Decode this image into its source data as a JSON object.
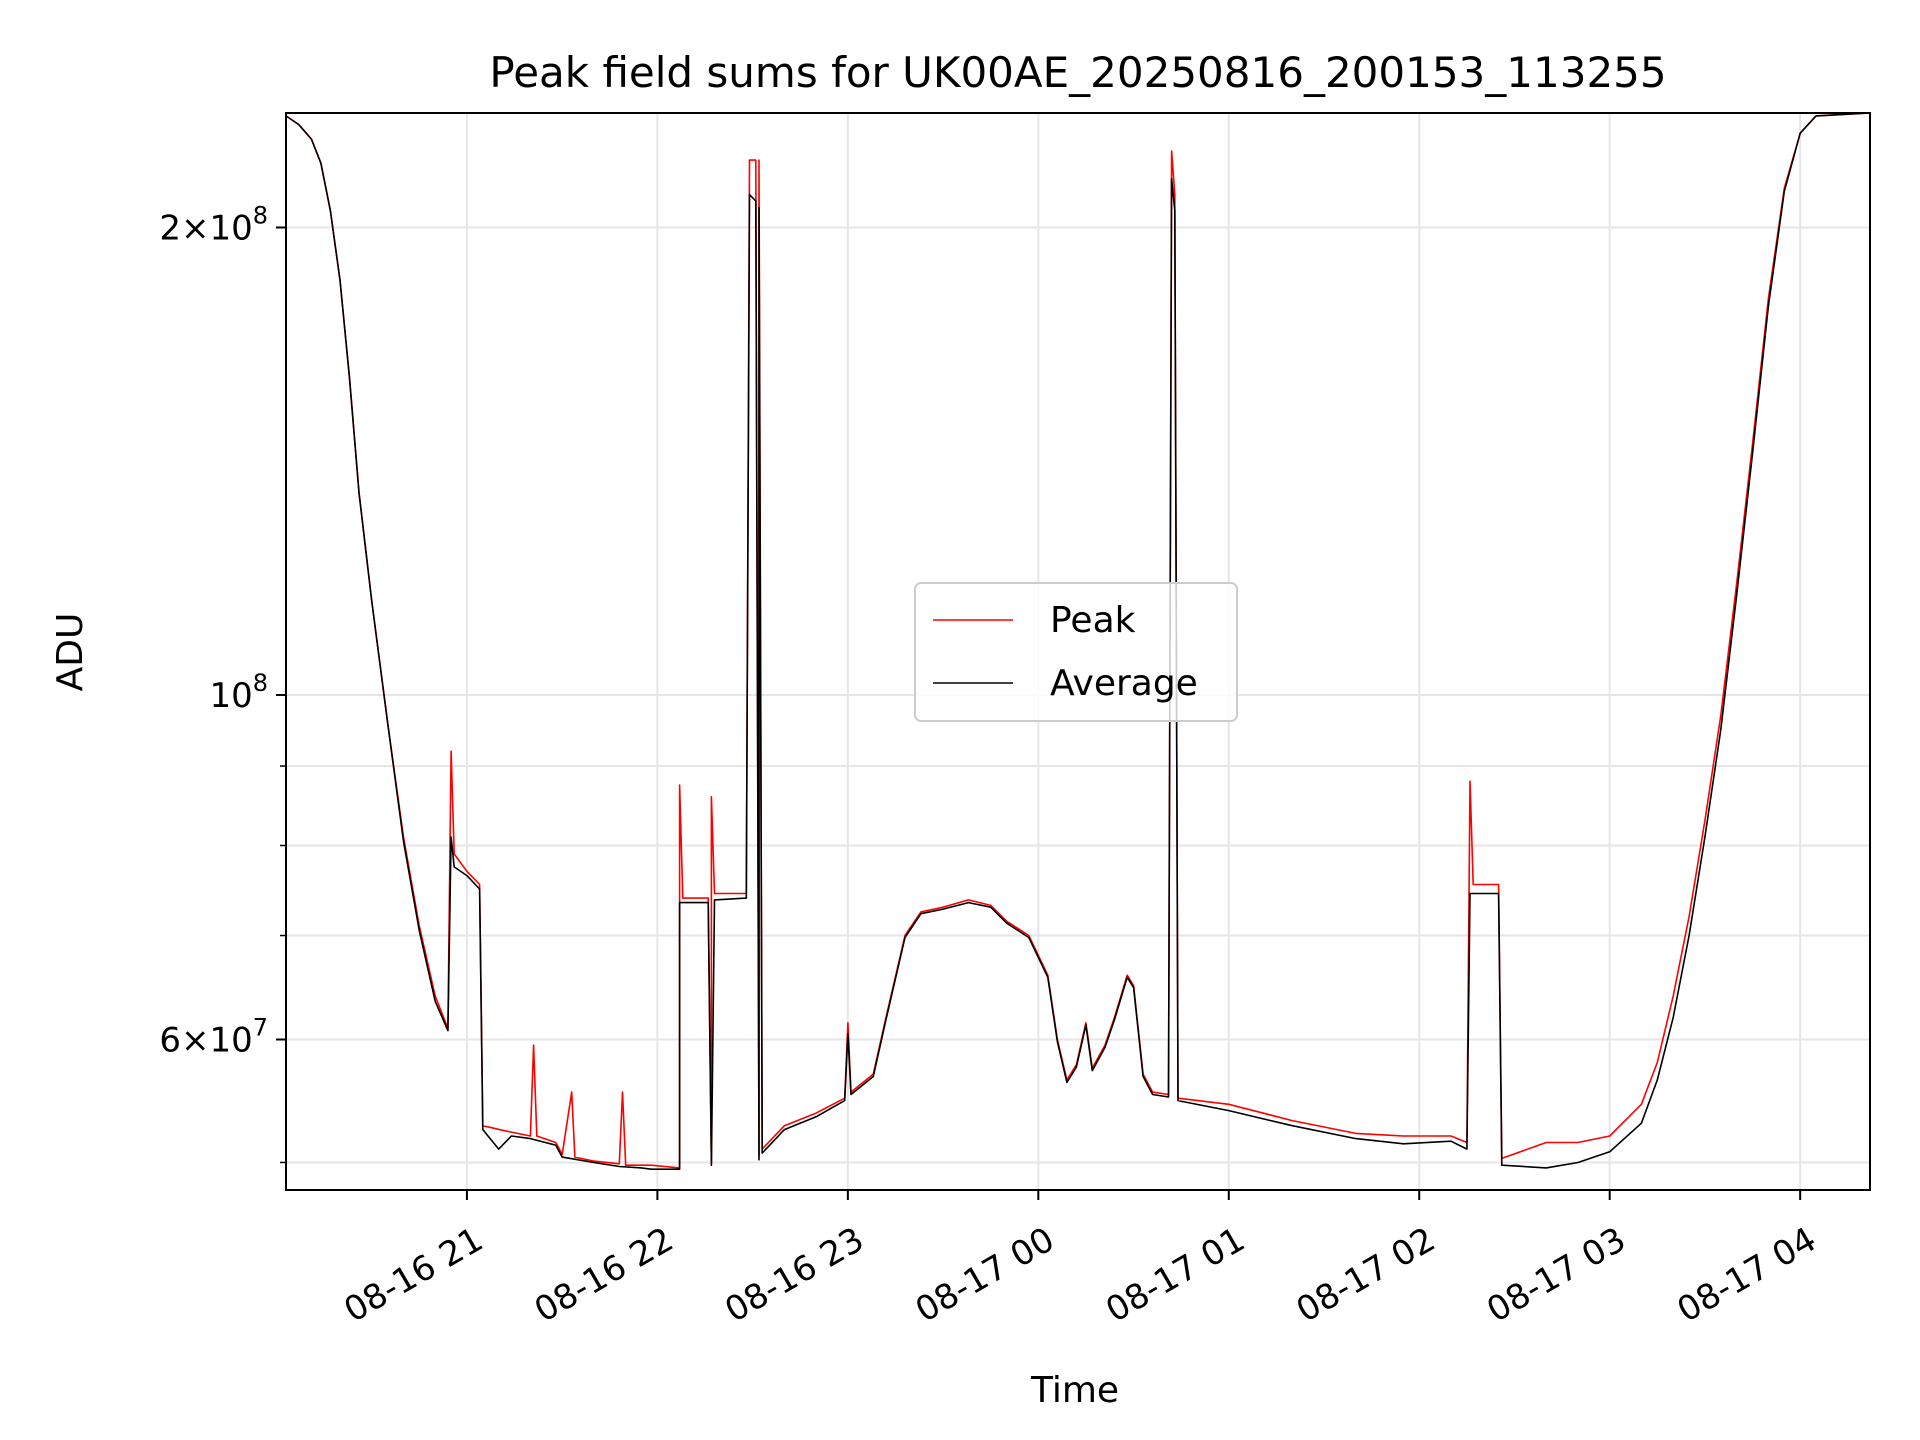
{
  "chart_data": {
    "type": "line",
    "title": "Peak field sums for UK00AE_20250816_200153_113255",
    "xlabel": "Time",
    "ylabel": "ADU",
    "yscale": "log",
    "ylim": [
      48000000,
      237000000
    ],
    "xlim": [
      "2025-08-16 20:03",
      "2025-08-17 04:22"
    ],
    "grid": true,
    "legend_position": "center",
    "x_ticks": [
      {
        "t": "2025-08-16 21:00",
        "label": "08-16 21"
      },
      {
        "t": "2025-08-16 22:00",
        "label": "08-16 22"
      },
      {
        "t": "2025-08-16 23:00",
        "label": "08-16 23"
      },
      {
        "t": "2025-08-17 00:00",
        "label": "08-17 00"
      },
      {
        "t": "2025-08-17 01:00",
        "label": "08-17 01"
      },
      {
        "t": "2025-08-17 02:00",
        "label": "08-17 02"
      },
      {
        "t": "2025-08-17 03:00",
        "label": "08-17 03"
      },
      {
        "t": "2025-08-17 04:00",
        "label": "08-17 04"
      }
    ],
    "y_major_ticks": [
      {
        "value": 60000000,
        "label_base": "6",
        "label_exp": "7",
        "mantissa": true
      },
      {
        "value": 100000000,
        "label_base": "",
        "label_exp": "8",
        "mantissa": false
      },
      {
        "value": 200000000,
        "label_base": "2",
        "label_exp": "8",
        "mantissa": true
      }
    ],
    "y_minor_ticks": [
      50000000,
      70000000,
      80000000,
      90000000
    ],
    "series": [
      {
        "name": "Peak",
        "color": "#ff0000",
        "points": [
          [
            "2025-08-16 20:03",
            236000000
          ],
          [
            "2025-08-16 20:07",
            233000000
          ],
          [
            "2025-08-16 20:11",
            228000000
          ],
          [
            "2025-08-16 20:14",
            220000000
          ],
          [
            "2025-08-16 20:17",
            205000000
          ],
          [
            "2025-08-16 20:20",
            185000000
          ],
          [
            "2025-08-16 20:23",
            160000000
          ],
          [
            "2025-08-16 20:26",
            135000000
          ],
          [
            "2025-08-16 20:30",
            115000000
          ],
          [
            "2025-08-16 20:35",
            96000000
          ],
          [
            "2025-08-16 20:40",
            81000000
          ],
          [
            "2025-08-16 20:45",
            71000000
          ],
          [
            "2025-08-16 20:50",
            64000000
          ],
          [
            "2025-08-16 20:54",
            61000000
          ],
          [
            "2025-08-16 20:55",
            92000000
          ],
          [
            "2025-08-16 20:56",
            79000000
          ],
          [
            "2025-08-16 21:00",
            77000000
          ],
          [
            "2025-08-16 21:04",
            75500000
          ],
          [
            "2025-08-16 21:05",
            52800000
          ],
          [
            "2025-08-16 21:12",
            52400000
          ],
          [
            "2025-08-16 21:20",
            52000000
          ],
          [
            "2025-08-16 21:21",
            59500000
          ],
          [
            "2025-08-16 21:22",
            52000000
          ],
          [
            "2025-08-16 21:28",
            51500000
          ],
          [
            "2025-08-16 21:30",
            50600000
          ],
          [
            "2025-08-16 21:33",
            55500000
          ],
          [
            "2025-08-16 21:34",
            50400000
          ],
          [
            "2025-08-16 21:40",
            50100000
          ],
          [
            "2025-08-16 21:48",
            49900000
          ],
          [
            "2025-08-16 21:49",
            55500000
          ],
          [
            "2025-08-16 21:50",
            49800000
          ],
          [
            "2025-08-16 21:55",
            49800000
          ],
          [
            "2025-08-16 21:58",
            49800000
          ],
          [
            "2025-08-16 22:07",
            49600000
          ],
          [
            "2025-08-16 22:07",
            87500000
          ],
          [
            "2025-08-16 22:08",
            74000000
          ],
          [
            "2025-08-16 22:16",
            74000000
          ],
          [
            "2025-08-16 22:17",
            50000000
          ],
          [
            "2025-08-16 22:17",
            86000000
          ],
          [
            "2025-08-16 22:18",
            74500000
          ],
          [
            "2025-08-16 22:28",
            74500000
          ],
          [
            "2025-08-16 22:29",
            221000000
          ],
          [
            "2025-08-16 22:31",
            221000000
          ],
          [
            "2025-08-16 22:32",
            50500000
          ],
          [
            "2025-08-16 22:32",
            221000000
          ],
          [
            "2025-08-16 22:33",
            51000000
          ],
          [
            "2025-08-16 22:40",
            52800000
          ],
          [
            "2025-08-16 22:50",
            53800000
          ],
          [
            "2025-08-16 22:59",
            55000000
          ],
          [
            "2025-08-16 23:00",
            61500000
          ],
          [
            "2025-08-16 23:01",
            55500000
          ],
          [
            "2025-08-16 23:08",
            57000000
          ],
          [
            "2025-08-16 23:12",
            62000000
          ],
          [
            "2025-08-16 23:18",
            70000000
          ],
          [
            "2025-08-16 23:23",
            72500000
          ],
          [
            "2025-08-16 23:30",
            73000000
          ],
          [
            "2025-08-16 23:38",
            73800000
          ],
          [
            "2025-08-16 23:45",
            73200000
          ],
          [
            "2025-08-16 23:50",
            71500000
          ],
          [
            "2025-08-16 23:57",
            70000000
          ],
          [
            "2025-08-17 00:03",
            66000000
          ],
          [
            "2025-08-17 00:06",
            60000000
          ],
          [
            "2025-08-17 00:09",
            56500000
          ],
          [
            "2025-08-17 00:12",
            57800000
          ],
          [
            "2025-08-17 00:15",
            61500000
          ],
          [
            "2025-08-17 00:17",
            57500000
          ],
          [
            "2025-08-17 00:21",
            59500000
          ],
          [
            "2025-08-17 00:24",
            62000000
          ],
          [
            "2025-08-17 00:28",
            66000000
          ],
          [
            "2025-08-17 00:30",
            65000000
          ],
          [
            "2025-08-17 00:33",
            57000000
          ],
          [
            "2025-08-17 00:36",
            55500000
          ],
          [
            "2025-08-17 00:41",
            55300000
          ],
          [
            "2025-08-17 00:42",
            224000000
          ],
          [
            "2025-08-17 00:43",
            210000000
          ],
          [
            "2025-08-17 00:44",
            55000000
          ],
          [
            "2025-08-17 01:00",
            54500000
          ],
          [
            "2025-08-17 01:20",
            53200000
          ],
          [
            "2025-08-17 01:40",
            52200000
          ],
          [
            "2025-08-17 01:55",
            52000000
          ],
          [
            "2025-08-17 02:10",
            52000000
          ],
          [
            "2025-08-17 02:15",
            51500000
          ],
          [
            "2025-08-17 02:16",
            88000000
          ],
          [
            "2025-08-17 02:17",
            75500000
          ],
          [
            "2025-08-17 02:25",
            75500000
          ],
          [
            "2025-08-17 02:26",
            50300000
          ],
          [
            "2025-08-17 02:40",
            51500000
          ],
          [
            "2025-08-17 02:50",
            51500000
          ],
          [
            "2025-08-17 03:00",
            52000000
          ],
          [
            "2025-08-17 03:10",
            54500000
          ],
          [
            "2025-08-17 03:15",
            58000000
          ],
          [
            "2025-08-17 03:20",
            64000000
          ],
          [
            "2025-08-17 03:25",
            72000000
          ],
          [
            "2025-08-17 03:30",
            83000000
          ],
          [
            "2025-08-17 03:35",
            97000000
          ],
          [
            "2025-08-17 03:40",
            118000000
          ],
          [
            "2025-08-17 03:45",
            145000000
          ],
          [
            "2025-08-17 03:50",
            180000000
          ],
          [
            "2025-08-17 03:55",
            212000000
          ],
          [
            "2025-08-17 04:00",
            230000000
          ],
          [
            "2025-08-17 04:05",
            236000000
          ],
          [
            "2025-08-17 04:22",
            237000000
          ]
        ]
      },
      {
        "name": "Average",
        "color": "#000000",
        "points": [
          [
            "2025-08-16 20:03",
            236000000
          ],
          [
            "2025-08-16 20:07",
            233000000
          ],
          [
            "2025-08-16 20:11",
            228000000
          ],
          [
            "2025-08-16 20:14",
            220000000
          ],
          [
            "2025-08-16 20:17",
            205000000
          ],
          [
            "2025-08-16 20:20",
            185000000
          ],
          [
            "2025-08-16 20:23",
            160000000
          ],
          [
            "2025-08-16 20:26",
            135000000
          ],
          [
            "2025-08-16 20:30",
            115000000
          ],
          [
            "2025-08-16 20:35",
            96000000
          ],
          [
            "2025-08-16 20:40",
            80500000
          ],
          [
            "2025-08-16 20:45",
            70500000
          ],
          [
            "2025-08-16 20:50",
            63500000
          ],
          [
            "2025-08-16 20:54",
            60800000
          ],
          [
            "2025-08-16 20:55",
            81000000
          ],
          [
            "2025-08-16 20:56",
            77500000
          ],
          [
            "2025-08-16 21:00",
            76500000
          ],
          [
            "2025-08-16 21:04",
            75000000
          ],
          [
            "2025-08-16 21:05",
            52500000
          ],
          [
            "2025-08-16 21:10",
            51000000
          ],
          [
            "2025-08-16 21:14",
            52000000
          ],
          [
            "2025-08-16 21:20",
            51800000
          ],
          [
            "2025-08-16 21:28",
            51300000
          ],
          [
            "2025-08-16 21:30",
            50400000
          ],
          [
            "2025-08-16 21:40",
            50000000
          ],
          [
            "2025-08-16 21:48",
            49700000
          ],
          [
            "2025-08-16 21:55",
            49600000
          ],
          [
            "2025-08-16 21:58",
            49500000
          ],
          [
            "2025-08-16 22:07",
            49500000
          ],
          [
            "2025-08-16 22:07",
            73500000
          ],
          [
            "2025-08-16 22:16",
            73500000
          ],
          [
            "2025-08-16 22:17",
            49800000
          ],
          [
            "2025-08-16 22:18",
            73800000
          ],
          [
            "2025-08-16 22:28",
            74000000
          ],
          [
            "2025-08-16 22:29",
            210000000
          ],
          [
            "2025-08-16 22:31",
            208000000
          ],
          [
            "2025-08-16 22:32",
            50200000
          ],
          [
            "2025-08-16 22:32",
            206000000
          ],
          [
            "2025-08-16 22:33",
            50700000
          ],
          [
            "2025-08-16 22:40",
            52500000
          ],
          [
            "2025-08-16 22:50",
            53500000
          ],
          [
            "2025-08-16 22:59",
            54800000
          ],
          [
            "2025-08-16 23:00",
            60500000
          ],
          [
            "2025-08-16 23:01",
            55300000
          ],
          [
            "2025-08-16 23:08",
            56800000
          ],
          [
            "2025-08-16 23:12",
            61800000
          ],
          [
            "2025-08-16 23:18",
            69800000
          ],
          [
            "2025-08-16 23:23",
            72300000
          ],
          [
            "2025-08-16 23:30",
            72800000
          ],
          [
            "2025-08-16 23:38",
            73500000
          ],
          [
            "2025-08-16 23:45",
            73000000
          ],
          [
            "2025-08-16 23:50",
            71300000
          ],
          [
            "2025-08-16 23:57",
            69800000
          ],
          [
            "2025-08-17 00:03",
            65800000
          ],
          [
            "2025-08-17 00:06",
            59800000
          ],
          [
            "2025-08-17 00:09",
            56300000
          ],
          [
            "2025-08-17 00:12",
            57600000
          ],
          [
            "2025-08-17 00:15",
            61300000
          ],
          [
            "2025-08-17 00:17",
            57300000
          ],
          [
            "2025-08-17 00:21",
            59300000
          ],
          [
            "2025-08-17 00:24",
            61800000
          ],
          [
            "2025-08-17 00:28",
            65800000
          ],
          [
            "2025-08-17 00:30",
            64800000
          ],
          [
            "2025-08-17 00:33",
            56800000
          ],
          [
            "2025-08-17 00:36",
            55300000
          ],
          [
            "2025-08-17 00:41",
            55100000
          ],
          [
            "2025-08-17 00:42",
            215000000
          ],
          [
            "2025-08-17 00:43",
            205000000
          ],
          [
            "2025-08-17 00:44",
            54800000
          ],
          [
            "2025-08-17 01:00",
            54000000
          ],
          [
            "2025-08-17 01:20",
            52800000
          ],
          [
            "2025-08-17 01:40",
            51800000
          ],
          [
            "2025-08-17 01:55",
            51400000
          ],
          [
            "2025-08-17 02:10",
            51600000
          ],
          [
            "2025-08-17 02:15",
            51000000
          ],
          [
            "2025-08-17 02:16",
            74500000
          ],
          [
            "2025-08-17 02:25",
            74500000
          ],
          [
            "2025-08-17 02:26",
            49800000
          ],
          [
            "2025-08-17 02:40",
            49600000
          ],
          [
            "2025-08-17 02:50",
            50000000
          ],
          [
            "2025-08-17 03:00",
            50800000
          ],
          [
            "2025-08-17 03:10",
            53000000
          ],
          [
            "2025-08-17 03:15",
            56500000
          ],
          [
            "2025-08-17 03:20",
            62000000
          ],
          [
            "2025-08-17 03:25",
            70000000
          ],
          [
            "2025-08-17 03:30",
            81000000
          ],
          [
            "2025-08-17 03:35",
            95000000
          ],
          [
            "2025-08-17 03:40",
            116000000
          ],
          [
            "2025-08-17 03:45",
            143000000
          ],
          [
            "2025-08-17 03:50",
            178000000
          ],
          [
            "2025-08-17 03:55",
            211000000
          ],
          [
            "2025-08-17 04:00",
            230000000
          ],
          [
            "2025-08-17 04:05",
            236000000
          ],
          [
            "2025-08-17 04:22",
            237000000
          ]
        ]
      }
    ]
  }
}
